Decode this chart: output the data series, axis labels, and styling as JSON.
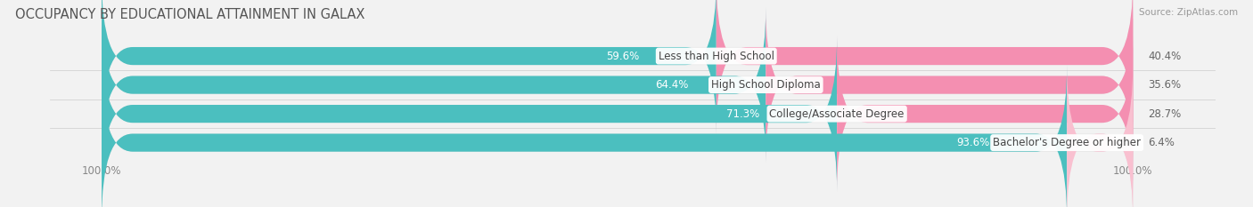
{
  "title": "OCCUPANCY BY EDUCATIONAL ATTAINMENT IN GALAX",
  "source": "Source: ZipAtlas.com",
  "categories": [
    "Less than High School",
    "High School Diploma",
    "College/Associate Degree",
    "Bachelor's Degree or higher"
  ],
  "owner_pct": [
    59.6,
    64.4,
    71.3,
    93.6
  ],
  "renter_pct": [
    40.4,
    35.6,
    28.7,
    6.4
  ],
  "owner_color": "#4bbfbf",
  "renter_color": "#f48fb1",
  "renter_color_last": "#f9c0d0",
  "bar_height": 0.62,
  "background_color": "#f2f2f2",
  "bar_bg_color": "#e4e4e4",
  "title_fontsize": 10.5,
  "label_fontsize": 8.5,
  "tick_fontsize": 8.5,
  "cat_fontsize": 8.5,
  "axis_label_left": "100.0%",
  "axis_label_right": "100.0%",
  "total_width": 100,
  "rounding_size": 3.0
}
